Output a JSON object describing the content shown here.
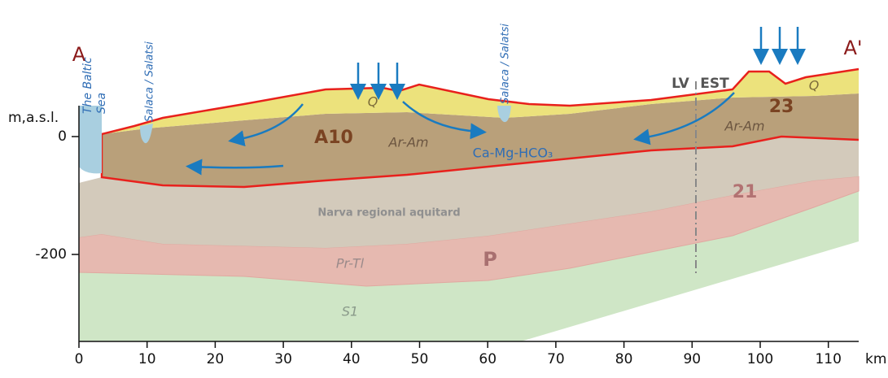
{
  "y_axis": {
    "label": "m,a.s.l.",
    "ticks": [
      "0",
      "-200"
    ]
  },
  "x_axis": {
    "unit": "km",
    "ticks": [
      "0",
      "10",
      "20",
      "30",
      "40",
      "50",
      "60",
      "70",
      "80",
      "90",
      "100",
      "110"
    ]
  },
  "section_ends": {
    "start": "A",
    "end": "A'"
  },
  "labels": {
    "sea": [
      "The Baltic",
      "Sea"
    ],
    "river_1": "Salaca / Salatsi",
    "river_2": "Salaca / Salatsi",
    "q_1": "Q",
    "q_2": "Q",
    "aquifer_1": "A10",
    "aquifer_2": "23",
    "aquifer_3": "21",
    "ar_am_1": "Ar-Am",
    "ar_am_2": "Ar-Am",
    "water_type": "Ca-Mg-HCO₃",
    "border_left": "LV",
    "border_right": "EST",
    "aquitard": "Narva regional aquitard",
    "pr_tl": "Pr-Tl",
    "p": "P",
    "s1": "S1"
  }
}
